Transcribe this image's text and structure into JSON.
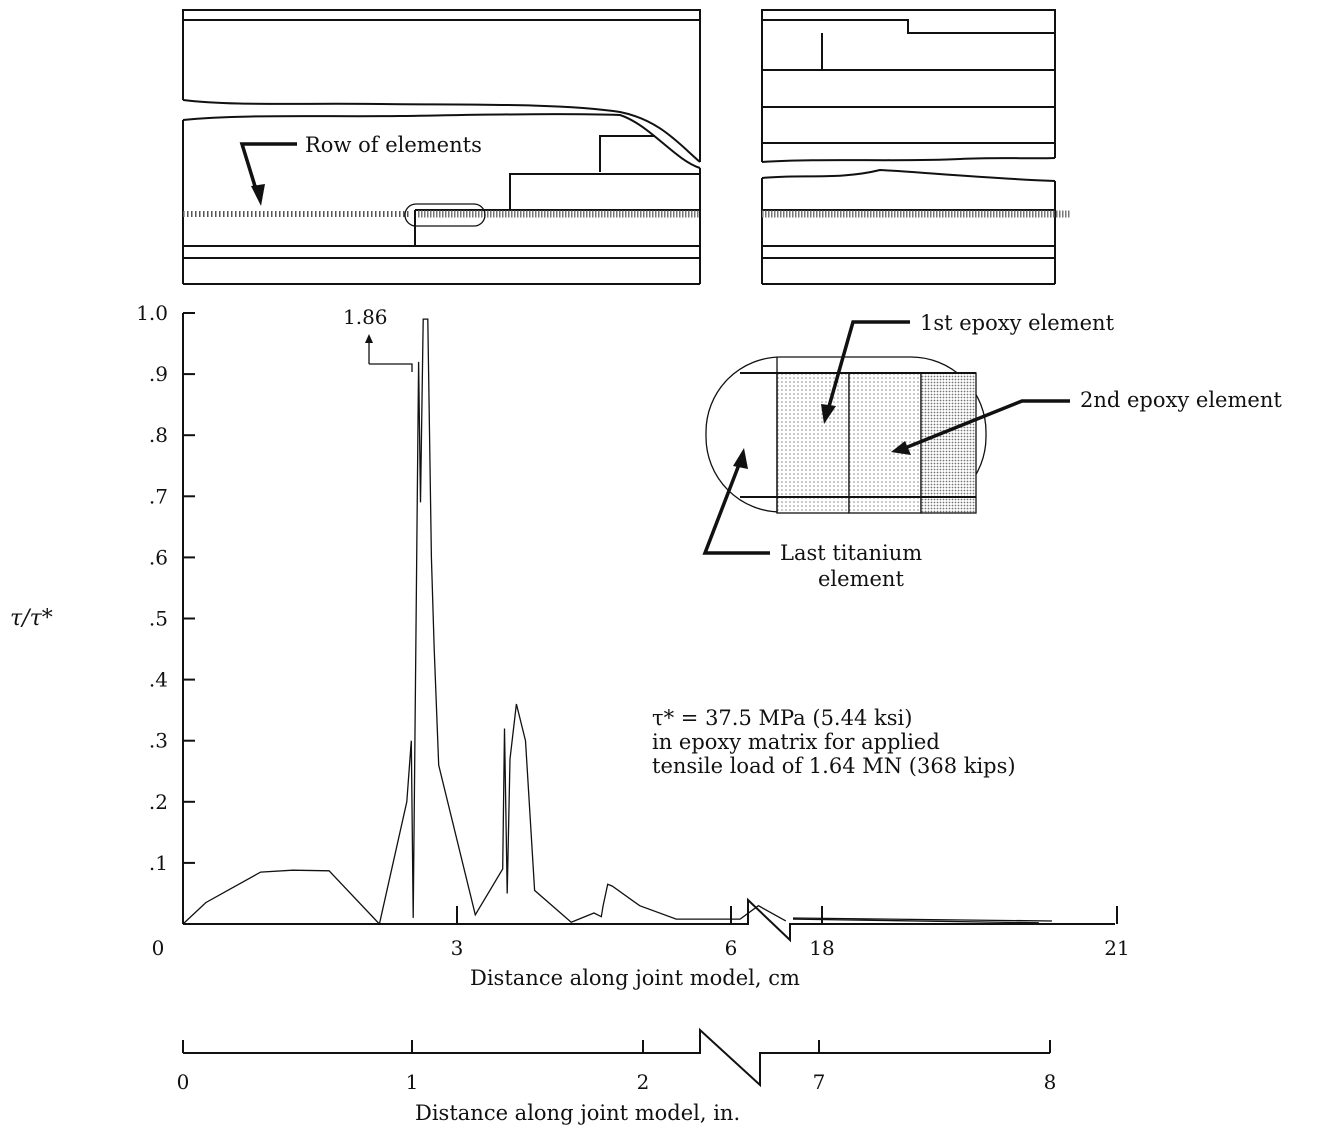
{
  "chart_data": {
    "type": "line",
    "ylabel": "τ/τ*",
    "xlabel": "Distance along joint model, cm",
    "xlabel_in": "Distance along joint model, in.",
    "ylim": [
      0,
      1.0
    ],
    "y_ticks": [
      ".1",
      ".2",
      ".3",
      ".4",
      ".5",
      ".6",
      ".7",
      ".8",
      ".9",
      "1.0"
    ],
    "x_ticks_cm": [
      "0",
      "3",
      "6",
      "18",
      "21"
    ],
    "x_ticks_in": [
      "0",
      "1",
      "2",
      "7",
      "8"
    ],
    "peak_label": "1.86",
    "series": [
      {
        "x": [
          0,
          0.25,
          0.85,
          1.2,
          1.6,
          2.15,
          2.45,
          2.5,
          2.52,
          2.58,
          2.6,
          2.63,
          2.68,
          2.72,
          2.75,
          2.8,
          3.2,
          3.5,
          3.52,
          3.55,
          3.58,
          3.65,
          3.75,
          3.85,
          4.25,
          4.5,
          4.58,
          4.6,
          4.65,
          4.7,
          5.0,
          5.4,
          6.0,
          6.1,
          6.3,
          6.6
        ],
        "y": [
          0,
          0.035,
          0.085,
          0.088,
          0.087,
          0,
          0.2,
          0.3,
          0.01,
          0.92,
          0.69,
          0.99,
          0.99,
          0.6,
          0.45,
          0.26,
          0.015,
          0.09,
          0.32,
          0.05,
          0.27,
          0.36,
          0.3,
          0.055,
          0.003,
          0.018,
          0.012,
          0.03,
          0.065,
          0.062,
          0.03,
          0.008,
          0.008,
          0.008,
          0.03,
          0.005
        ]
      },
      {
        "x": [
          18,
          20.5
        ],
        "y": [
          0.008,
          0.002
        ]
      }
    ],
    "annotation_lines": [
      "τ* = 37.5 MPa (5.44 ksi)",
      "in epoxy matrix for applied",
      "tensile load of 1.64 MN (368 kips)"
    ]
  },
  "diagram": {
    "row_label": "Row of elements",
    "first_epoxy": "1st epoxy element",
    "second_epoxy": "2nd epoxy element",
    "last_titanium_1": "Last titanium",
    "last_titanium_2": "element"
  }
}
